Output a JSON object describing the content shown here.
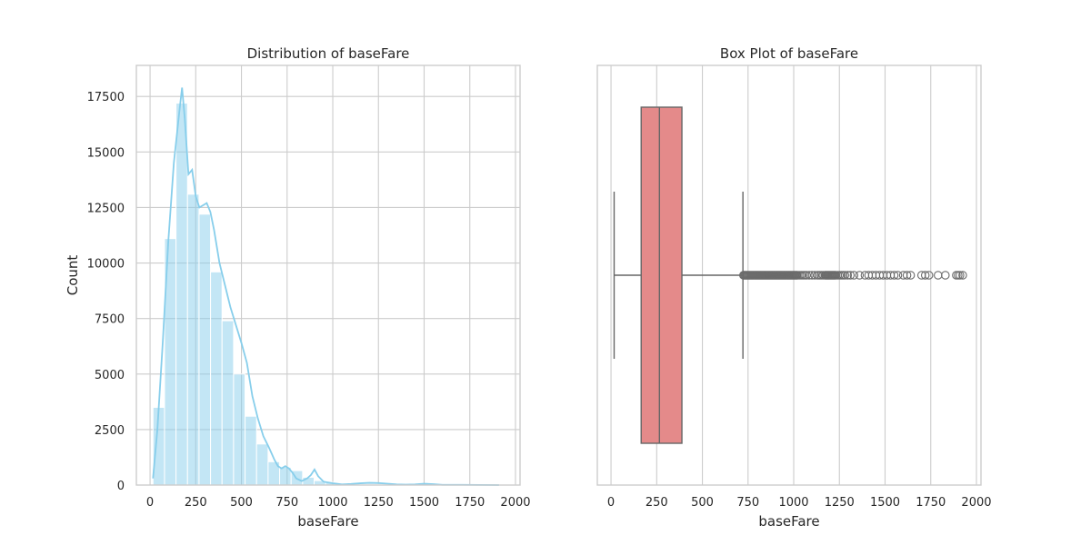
{
  "chart_data": [
    {
      "type": "histogram",
      "title": "Distribution of baseFare",
      "xlabel": "baseFare",
      "ylabel": "Count",
      "xlim": [
        -75,
        2025
      ],
      "ylim": [
        0,
        18900
      ],
      "xticks": [
        0,
        250,
        500,
        750,
        1000,
        1250,
        1500,
        1750,
        2000
      ],
      "yticks": [
        0,
        2500,
        5000,
        7500,
        10000,
        12500,
        15000,
        17500
      ],
      "grid": true,
      "color": "#87ceeb",
      "bin_width": 63,
      "bin_start": 16,
      "counts": [
        3500,
        11100,
        17200,
        13100,
        12200,
        9600,
        7400,
        5000,
        3100,
        1850,
        1050,
        800,
        650,
        350,
        200,
        120,
        60,
        50,
        40,
        30,
        30,
        25,
        20,
        15,
        15,
        10,
        10,
        10,
        5,
        5,
        10
      ],
      "kde": {
        "x": [
          16,
          40,
          70,
          100,
          130,
          160,
          175,
          190,
          210,
          230,
          250,
          270,
          290,
          310,
          330,
          350,
          380,
          410,
          440,
          470,
          500,
          530,
          560,
          590,
          620,
          650,
          680,
          700,
          720,
          740,
          760,
          780,
          800,
          830,
          860,
          880,
          900,
          920,
          950,
          1000,
          1050,
          1100,
          1150,
          1200,
          1250,
          1300,
          1350,
          1400,
          1450,
          1500,
          1550,
          1600,
          1700,
          1800,
          1910
        ],
        "y": [
          300,
          2500,
          6500,
          11000,
          14500,
          16800,
          17900,
          16500,
          14000,
          14200,
          13000,
          12500,
          12600,
          12700,
          12300,
          11500,
          10000,
          9000,
          8000,
          7200,
          6400,
          5500,
          4000,
          3000,
          2200,
          1700,
          1150,
          850,
          750,
          850,
          750,
          550,
          300,
          180,
          300,
          450,
          700,
          400,
          150,
          80,
          30,
          50,
          80,
          100,
          90,
          60,
          30,
          20,
          30,
          60,
          40,
          10,
          10,
          5,
          0
        ]
      }
    },
    {
      "type": "box",
      "title": "Box Plot of baseFare",
      "xlabel": "baseFare",
      "xlim": [
        -75,
        2025
      ],
      "xticks": [
        0,
        250,
        500,
        750,
        1000,
        1250,
        1500,
        1750,
        2000
      ],
      "grid": true,
      "color": "#e48a8a",
      "whisker_low": 17,
      "q1": 165,
      "median": 265,
      "q3": 388,
      "whisker_high": 722,
      "outliers": [
        725,
        730,
        735,
        740,
        745,
        750,
        755,
        760,
        765,
        770,
        775,
        780,
        785,
        790,
        795,
        800,
        805,
        810,
        815,
        820,
        825,
        830,
        835,
        840,
        845,
        850,
        855,
        860,
        865,
        870,
        875,
        880,
        885,
        890,
        895,
        900,
        905,
        910,
        915,
        920,
        925,
        930,
        935,
        940,
        945,
        950,
        955,
        960,
        965,
        970,
        975,
        980,
        985,
        990,
        995,
        1000,
        1005,
        1010,
        1015,
        1020,
        1030,
        1040,
        1050,
        1060,
        1070,
        1085,
        1100,
        1115,
        1130,
        1140,
        1150,
        1160,
        1170,
        1175,
        1180,
        1185,
        1190,
        1195,
        1200,
        1205,
        1210,
        1215,
        1220,
        1225,
        1230,
        1240,
        1250,
        1260,
        1270,
        1280,
        1295,
        1310,
        1330,
        1360,
        1390,
        1410,
        1430,
        1450,
        1470,
        1490,
        1510,
        1530,
        1550,
        1570,
        1600,
        1620,
        1640,
        1700,
        1720,
        1740,
        1790,
        1830,
        1890,
        1900,
        1910,
        1925
      ]
    }
  ]
}
